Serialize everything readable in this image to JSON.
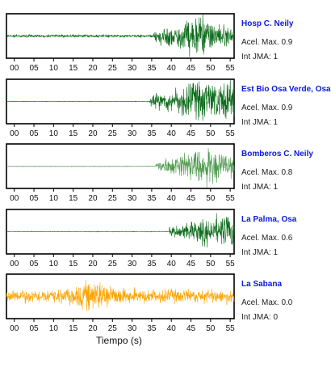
{
  "chart_data": {
    "type": "line",
    "xlabel": "Tiempo (s)",
    "xlim": [
      -2,
      56
    ],
    "xticks": [
      "00",
      "05",
      "10",
      "15",
      "20",
      "25",
      "30",
      "35",
      "40",
      "45",
      "50",
      "55"
    ],
    "panels": [
      {
        "station": "Hosp C. Neily",
        "acel_label": "Acel. Max. 0.9",
        "int_label": "Int JMA: 1",
        "color": "#0b6b1a",
        "onset_s": 35.5,
        "pre_amp": 0.06,
        "peak_s": 47,
        "peak_amp": 0.9,
        "tail": "decay"
      },
      {
        "station": "Est Bio Osa Verde, Osa",
        "acel_label": "Acel. Max. 0.9",
        "int_label": "Int JMA: 1",
        "color": "#0b6b1a",
        "onset_s": 34.5,
        "pre_amp": 0.01,
        "peak_s": 46,
        "peak_amp": 0.85,
        "tail": "sustain"
      },
      {
        "station": "Bomberos C. Neily",
        "acel_label": "Acel. Max. 0.8",
        "int_label": "Int JMA: 1",
        "color": "#4e9a4e",
        "onset_s": 36,
        "pre_amp": 0.01,
        "peak_s": 49,
        "peak_amp": 0.85,
        "tail": "decay"
      },
      {
        "station": "La Palma, Osa",
        "acel_label": "Acel. Max. 0.6",
        "int_label": "Int JMA: 1",
        "color": "#0b6b1a",
        "onset_s": 39.5,
        "pre_amp": 0.01,
        "peak_s": 56,
        "peak_amp": 0.8,
        "tail": "grow"
      },
      {
        "station": "La Sabana",
        "acel_label": "Acel. Max. 0.0",
        "int_label": "Int JMA: 0",
        "color": "#ffa500",
        "onset_s": -2,
        "pre_amp": 0.3,
        "peak_s": 21,
        "peak_amp": 0.7,
        "tail": "noise"
      }
    ]
  }
}
